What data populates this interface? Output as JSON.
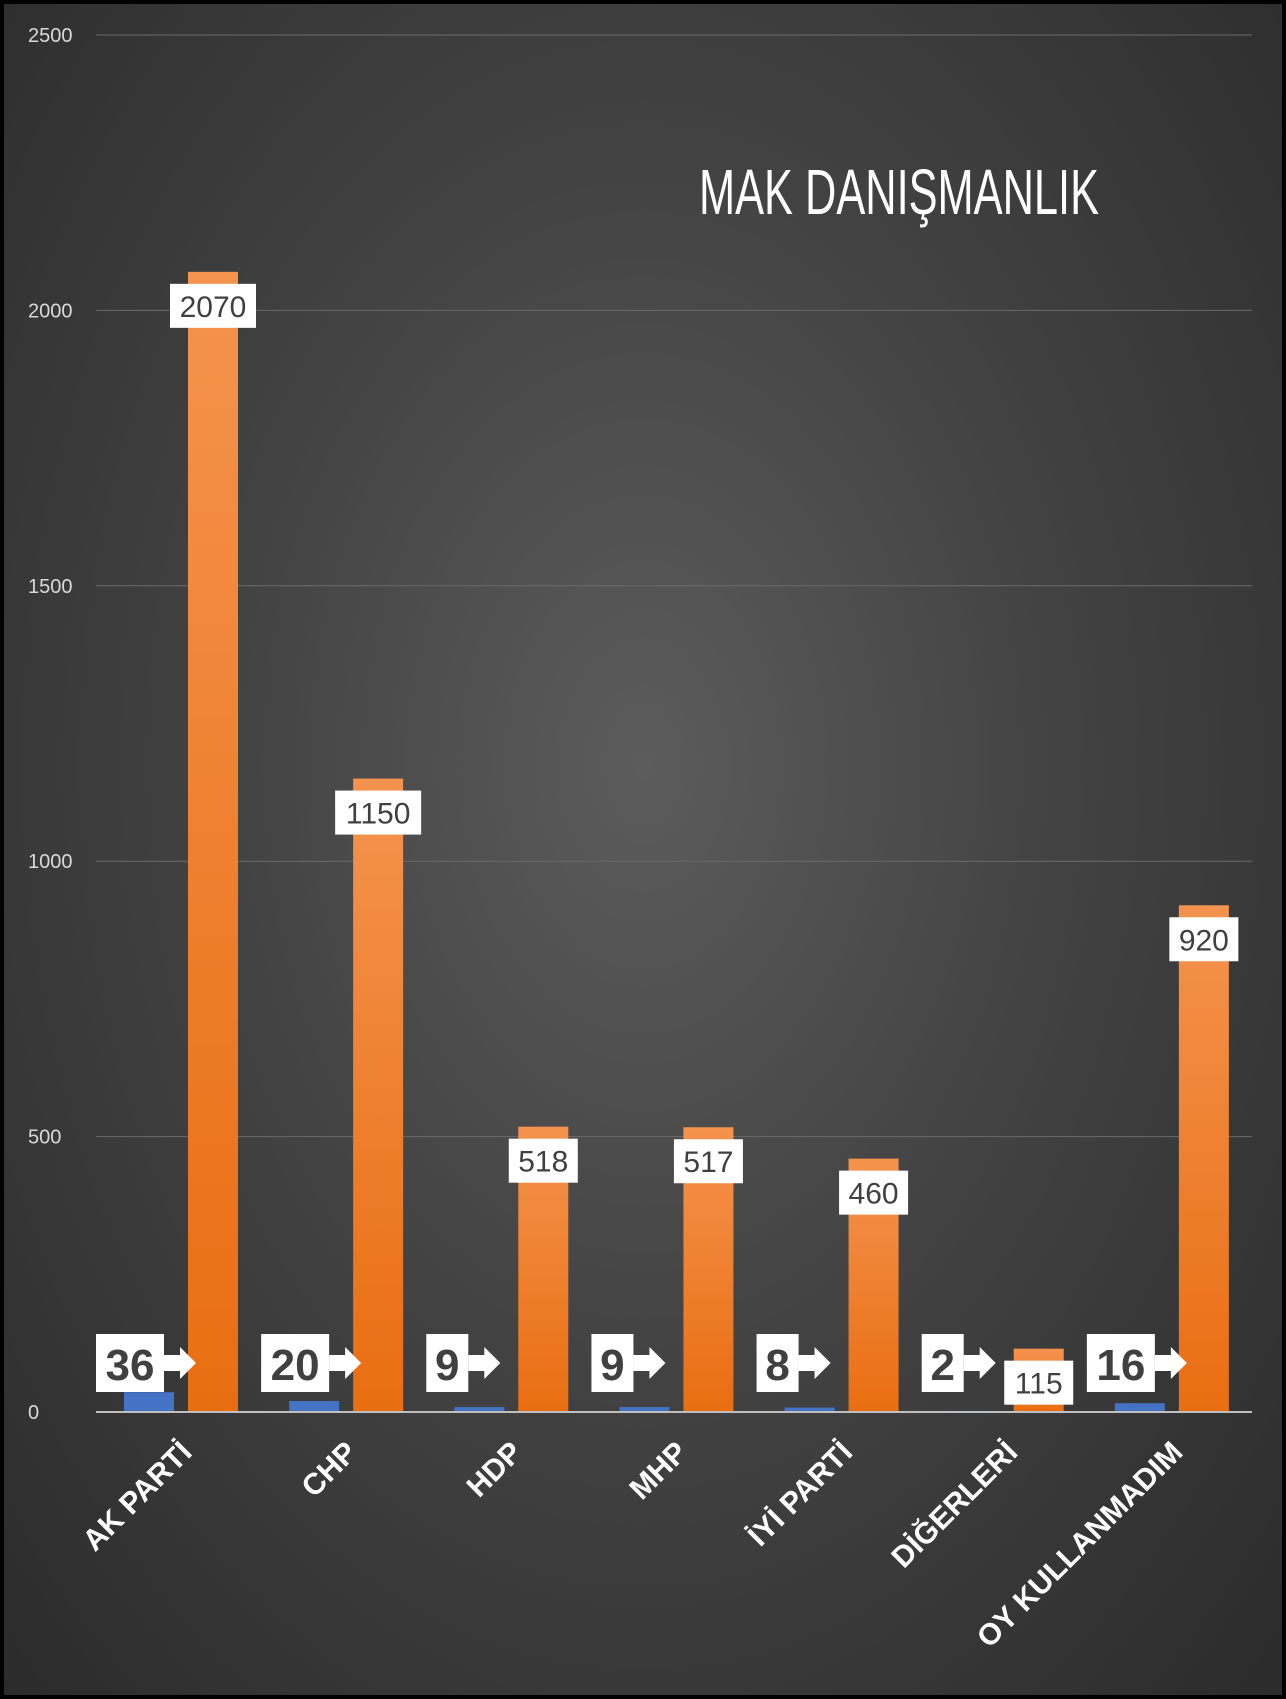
{
  "watermark": "MAK DANIŞMANLIK",
  "chart_data": {
    "type": "bar",
    "categories": [
      "AK PARTİ",
      "CHP",
      "HDP",
      "MHP",
      "İYİ PARTİ",
      "DİĞERLERİ",
      "OY KULLANMADIM"
    ],
    "series": [
      {
        "values": [
          36,
          20,
          9,
          9,
          8,
          2,
          16
        ],
        "color": "#4472C4"
      },
      {
        "values": [
          2070,
          1150,
          518,
          517,
          460,
          115,
          920
        ],
        "color": "#ED7D31"
      }
    ],
    "ylim": [
      0,
      2500
    ],
    "yticks": [
      0,
      500,
      1000,
      1500,
      2000,
      2500
    ],
    "grid": true,
    "legend": "none"
  }
}
